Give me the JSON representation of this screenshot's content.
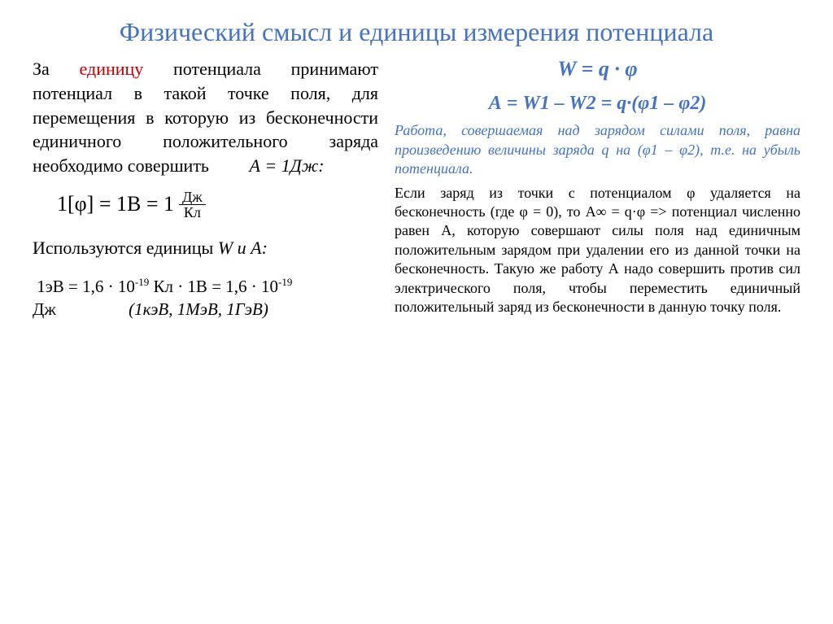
{
  "colors": {
    "title_color": "#4472c4",
    "accent_red": "#c00000",
    "body_color": "#000000",
    "background": "#ffffff"
  },
  "typography": {
    "title_fontsize": 32,
    "body_fontsize": 22,
    "right_fontsize": 18,
    "formula_fontsize": 26
  },
  "title": "Физический смысл и единицы измерения потенциала",
  "left": {
    "def_prefix": "За ",
    "unit_word": "единицу",
    "def_rest": " потенциала принимают потенциал в такой точке поля, для перемещения в которую из бесконечности единичного положительного заряда необходимо совершить ",
    "work_A": "А = 1Дж:",
    "unit_formula": {
      "lhs": "1[φ] = 1В = 1",
      "frac_top": "Дж",
      "frac_bot": "Кл"
    },
    "units_used_prefix": "Используются единицы ",
    "units_used_wa": "W и А:",
    "ev": {
      "p1": "1эВ = 1,6 · 10",
      "sup1": "-19",
      "p2": " Кл · 1В = 1,6 · 10",
      "sup2": "-19",
      "p3": " Дж",
      "paren": "(1кэВ, 1МэВ, 1ГэВ)"
    }
  },
  "right": {
    "formula1": "W = q · φ",
    "formula2": "А  = W1 – W2 = q·(φ1 – φ2)",
    "work_note": "Работа, совершаемая над зарядом силами поля, равна произведению величины заряда q на (φ1 – φ2), т.е. на убыль потенциала.",
    "body": "Если заряд из точки с потенциалом φ удаляется на бесконечность (где φ = 0), то    А∞ = q·φ => потенциал численно равен А, которую совершают силы поля над единичным положительным зарядом при удалении его из данной точки на бесконечность. Такую же работу А надо совершить против сил электрического поля, чтобы переместить единичный положительный заряд из бесконечности в данную точку поля."
  }
}
